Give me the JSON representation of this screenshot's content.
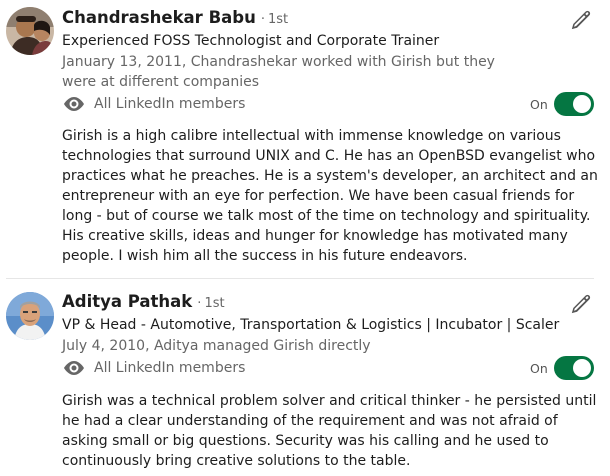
{
  "recommendations": [
    {
      "name": "Chandrashekar Babu",
      "degree": "1st",
      "headline": "Experienced FOSS Technologist and Corporate Trainer",
      "meta": "January 13, 2011, Chandrashekar worked with Girish but they were at different companies",
      "visibility": "All LinkedIn members",
      "toggle_label": "On",
      "toggle_on": true,
      "text": "Girish is a high calibre intellectual with immense knowledge on various technologies that surround UNIX and C. He has an OpenBSD evangelist who practices what he preaches. He is a system's developer, an architect and an entrepreneur with an eye for perfection. We have been casual friends for long - but of course we talk most of the time on technology and spirituality. His creative skills, ideas and hunger for knowledge has motivated many people. I wish him all the success in his future endeavors."
    },
    {
      "name": "Aditya Pathak",
      "degree": "1st",
      "headline": "VP & Head - Automotive, Transportation & Logistics | Incubator | Scaler",
      "meta": "July 4, 2010, Aditya managed Girish directly",
      "visibility": "All LinkedIn members",
      "toggle_label": "On",
      "toggle_on": true,
      "text": "Girish was a technical problem solver and critical thinker - he persisted until he had a clear understanding of the requirement and was not afraid of asking small or big questions. Security was his calling and he used to continuously bring creative solutions to the table."
    }
  ],
  "colors": {
    "toggle_on": "#057642",
    "muted_text": "#666666",
    "primary_text": "#1d1d1d"
  },
  "icons": {
    "edit": "pencil-icon",
    "visibility": "eye-icon"
  }
}
